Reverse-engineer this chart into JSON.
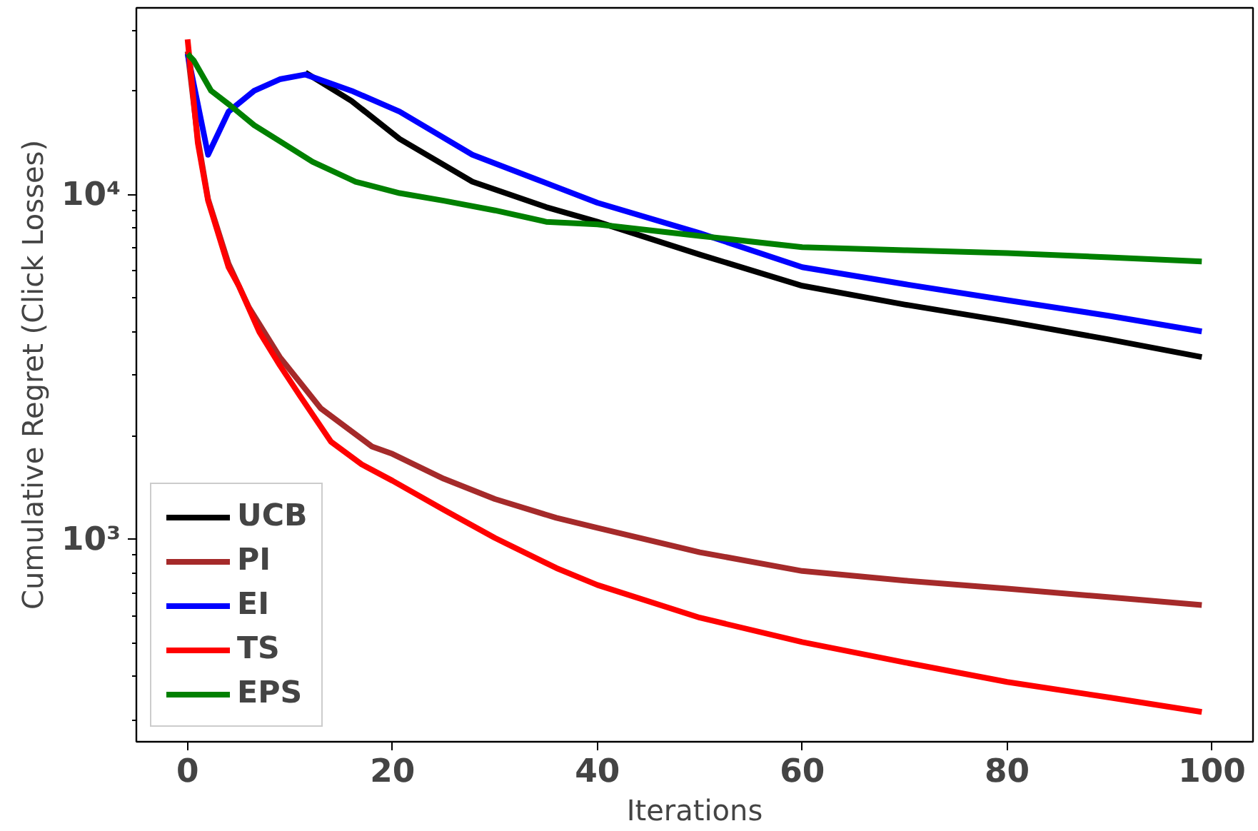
{
  "chart_data": {
    "type": "line",
    "xlabel": "Iterations",
    "ylabel": "Cumulative Regret (Click Losses)",
    "log": "y",
    "grid": false,
    "legend": "bottom left",
    "line_style": "solid",
    "marker": "none",
    "xlim": [
      -5,
      104
    ],
    "ylim": [
      259,
      34800
    ],
    "xticks": [
      0,
      20,
      40,
      60,
      80,
      100
    ],
    "yticks": [
      {
        "value": 300,
        "label": null
      },
      {
        "value": 400,
        "label": null
      },
      {
        "value": 500,
        "label": null
      },
      {
        "value": 600,
        "label": null
      },
      {
        "value": 700,
        "label": null
      },
      {
        "value": 800,
        "label": null
      },
      {
        "value": 900,
        "label": null
      },
      {
        "value": 1000,
        "label": "10³"
      },
      {
        "value": 2000,
        "label": null
      },
      {
        "value": 3000,
        "label": null
      },
      {
        "value": 4000,
        "label": null
      },
      {
        "value": 5000,
        "label": null
      },
      {
        "value": 6000,
        "label": null
      },
      {
        "value": 7000,
        "label": null
      },
      {
        "value": 8000,
        "label": null
      },
      {
        "value": 9000,
        "label": null
      },
      {
        "value": 10000,
        "label": "10⁴"
      },
      {
        "value": 20000,
        "label": null
      },
      {
        "value": 30000,
        "label": null
      }
    ],
    "series": [
      {
        "name": "UCB",
        "color": "#000000",
        "x": [
          11.5,
          16,
          20.7,
          27.8,
          35,
          40,
          50,
          60,
          70,
          80,
          90,
          99
        ],
        "values": [
          22600,
          18700,
          14500,
          10900,
          9200,
          8340,
          6700,
          5440,
          4800,
          4290,
          3800,
          3380
        ]
      },
      {
        "name": "PI",
        "color": "#a52a2a",
        "x": [
          0,
          1,
          2,
          4,
          6,
          9,
          13,
          18,
          20,
          25,
          30,
          36,
          40,
          50,
          60,
          70,
          80,
          90,
          99
        ],
        "values": [
          26000,
          14500,
          9700,
          6300,
          4700,
          3380,
          2400,
          1860,
          1770,
          1500,
          1310,
          1155,
          1080,
          918,
          810,
          760,
          720,
          680,
          645
        ]
      },
      {
        "name": "EI",
        "color": "#0000ff",
        "x": [
          0,
          2,
          4,
          6.5,
          9,
          11.5,
          16,
          20.7,
          27.8,
          40,
          50,
          60,
          70,
          80,
          90,
          99
        ],
        "values": [
          25600,
          13050,
          17400,
          20000,
          21600,
          22300,
          20000,
          17400,
          13050,
          9470,
          7730,
          6160,
          5500,
          4940,
          4450,
          4010
        ]
      },
      {
        "name": "TS",
        "color": "#ff0000",
        "x": [
          0,
          1,
          2,
          4,
          5,
          7,
          9,
          11,
          14,
          17,
          20,
          25,
          30,
          36,
          40,
          50,
          60,
          70,
          80,
          90,
          99
        ],
        "values": [
          28200,
          14100,
          9600,
          6160,
          5440,
          4000,
          3200,
          2600,
          1920,
          1650,
          1480,
          1220,
          1010,
          826,
          738,
          593,
          504,
          440,
          386,
          348,
          316
        ]
      },
      {
        "name": "EPS",
        "color": "#008000",
        "x": [
          0,
          0.6,
          2.3,
          4.1,
          6.5,
          8.9,
          12.2,
          16.4,
          20.7,
          25,
          30,
          35,
          40,
          50,
          60,
          70,
          80,
          90,
          99
        ],
        "values": [
          25600,
          24500,
          20000,
          18200,
          15900,
          14350,
          12450,
          10900,
          10100,
          9600,
          9000,
          8340,
          8200,
          7590,
          7040,
          6900,
          6770,
          6580,
          6400
        ]
      }
    ]
  }
}
